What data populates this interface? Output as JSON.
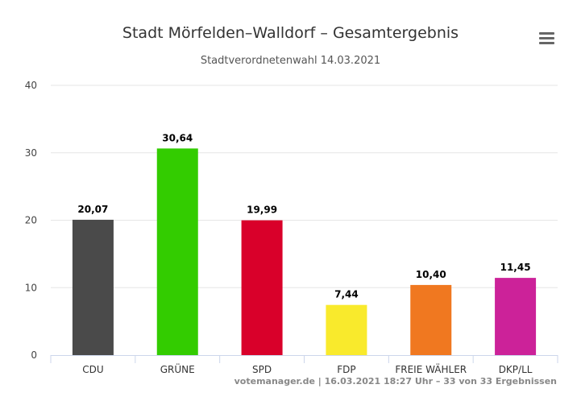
{
  "chart_data": {
    "type": "bar",
    "title": "Stadt Mörfelden–Walldorf – Gesamtergebnis",
    "subtitle": "Stadtverordnetenwahl 14.03.2021",
    "xlabel": "",
    "ylabel": "",
    "ylim": [
      0,
      40
    ],
    "yticks": [
      0,
      10,
      20,
      30,
      40
    ],
    "grid": true,
    "categories": [
      "CDU",
      "GRÜNE",
      "SPD",
      "FDP",
      "FREIE WÄHLER",
      "DKP/LL"
    ],
    "values": [
      20.07,
      30.64,
      19.99,
      7.44,
      10.4,
      11.45
    ],
    "value_labels": [
      "20,07",
      "30,64",
      "19,99",
      "7,44",
      "10,40",
      "11,45"
    ],
    "colors": [
      "#4a4a4a",
      "#33cc00",
      "#d9002a",
      "#f9ea2c",
      "#f07820",
      "#cc2299"
    ]
  },
  "credits": "votemanager.de | 16.03.2021 18:27 Uhr – 33 von 33 Ergebnissen",
  "menu_icon": "hamburger-menu-icon"
}
